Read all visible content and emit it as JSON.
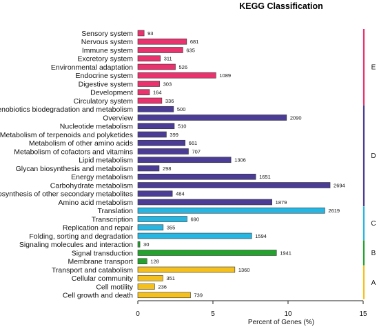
{
  "chart_data": {
    "type": "bar",
    "orientation": "horizontal",
    "title": "KEGG Classification",
    "xlabel": "Percent of Genes (%)",
    "ylabel": "",
    "xlim": [
      0,
      15
    ],
    "xticks": [
      0,
      5,
      10,
      15
    ],
    "grid": false,
    "categories": [
      "Sensory system",
      "Nervous system",
      "Immune system",
      "Excretory system",
      "Environmental adaptation",
      "Endocrine system",
      "Digestive system",
      "Development",
      "Circulatory system",
      "Xenobiotics biodegradation and metabolism",
      "Overview",
      "Nucleotide metabolism",
      "Metabolism of terpenoids and polyketides",
      "Metabolism of other amino acids",
      "Metabolism of cofactors and vitamins",
      "Lipid metabolism",
      "Glycan biosynthesis and metabolism",
      "Energy metabolism",
      "Carbohydrate metabolism",
      "Biosynthesis of other secondary metabolites",
      "Amino acid metabolism",
      "Translation",
      "Transcription",
      "Replication and repair",
      "Folding, sorting and degradation",
      "Signaling molecules and interaction",
      "Signal transduction",
      "Membrane transport",
      "Transport and catabolism",
      "Cellular community",
      "Cell motility",
      "Cell growth and death"
    ],
    "counts": [
      93,
      681,
      635,
      311,
      526,
      1089,
      303,
      164,
      336,
      500,
      2090,
      510,
      399,
      661,
      707,
      1306,
      298,
      1651,
      2694,
      484,
      1879,
      2619,
      690,
      355,
      1594,
      30,
      1941,
      128,
      1360,
      351,
      236,
      739
    ],
    "values": [
      0.42,
      3.25,
      3.0,
      1.5,
      2.5,
      5.2,
      1.45,
      0.78,
      1.6,
      2.38,
      9.9,
      2.43,
      1.9,
      3.15,
      3.37,
      6.2,
      1.42,
      7.85,
      12.8,
      2.3,
      8.93,
      12.45,
      3.28,
      1.69,
      7.58,
      0.14,
      9.23,
      0.61,
      6.46,
      1.67,
      1.12,
      3.51
    ],
    "groups": [
      {
        "label": "E",
        "start": 0,
        "end": 8,
        "color": "#e8336e"
      },
      {
        "label": "D",
        "start": 9,
        "end": 20,
        "color": "#4b3d96"
      },
      {
        "label": "C",
        "start": 21,
        "end": 24,
        "color": "#27b6e2"
      },
      {
        "label": "B",
        "start": 25,
        "end": 27,
        "color": "#23a32d"
      },
      {
        "label": "A",
        "start": 28,
        "end": 31,
        "color": "#f4c01e"
      }
    ]
  }
}
